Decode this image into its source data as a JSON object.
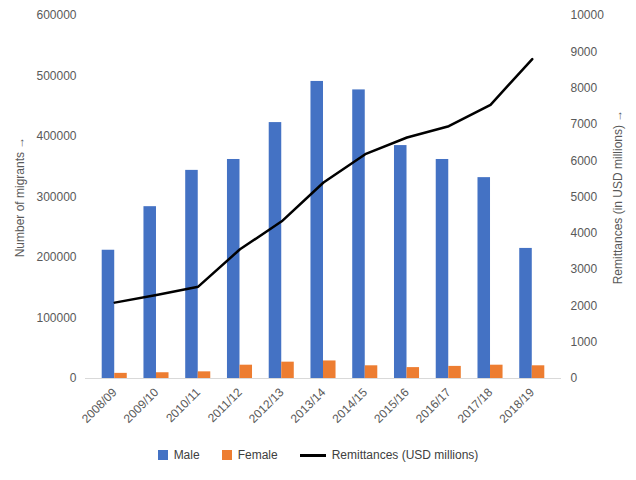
{
  "chart_data": {
    "type": "bar",
    "categories": [
      "2008/09",
      "2009/10",
      "2010/11",
      "2011/12",
      "2012/13",
      "2013/14",
      "2014/15",
      "2015/16",
      "2016/17",
      "2017/18",
      "2018/19"
    ],
    "series": [
      {
        "name": "Male",
        "color": "#4472c4",
        "values": [
          212000,
          284000,
          344000,
          362000,
          423000,
          491000,
          477000,
          385000,
          362000,
          332000,
          215000
        ]
      },
      {
        "name": "Female",
        "color": "#ed7d31",
        "values": [
          8500,
          9500,
          11000,
          22000,
          27000,
          29000,
          21000,
          18000,
          20000,
          22000,
          21000
        ]
      },
      {
        "name": "Remittances (USD millions)",
        "color": "#000000",
        "type": "line",
        "axis": "y2",
        "values": [
          2090,
          2300,
          2530,
          3560,
          4330,
          5400,
          6180,
          6640,
          6950,
          7540,
          8800
        ]
      }
    ],
    "y_label": "Number of migrants",
    "y2_label": "Remittances (in USD millions)",
    "ylim": [
      0,
      600000
    ],
    "yticks": [
      0,
      100000,
      200000,
      300000,
      400000,
      500000,
      600000
    ],
    "y2lim": [
      0,
      10000
    ],
    "y2ticks": [
      0,
      1000,
      2000,
      3000,
      4000,
      5000,
      6000,
      7000,
      8000,
      9000,
      10000
    ],
    "legend": "bottom"
  }
}
